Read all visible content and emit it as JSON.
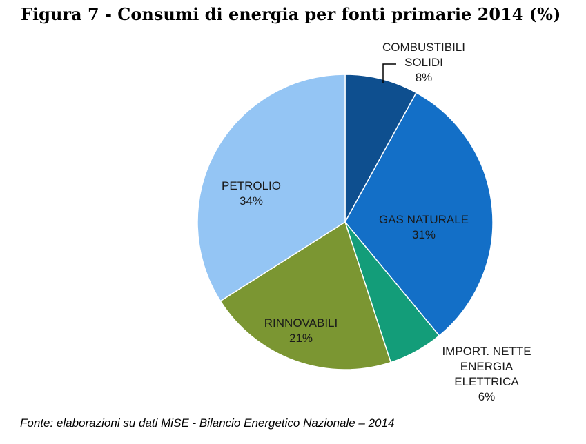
{
  "chart_data": {
    "type": "pie",
    "title": "Figura 7 - Consumi di energia per fonti primarie 2014 (%)",
    "source": "Fonte: elaborazioni su dati MiSE - Bilancio Energetico Nazionale – 2014",
    "slices": [
      {
        "label_lines": [
          "COMBUSTIBILI",
          "SOLIDI"
        ],
        "value": 8,
        "value_label": "8%",
        "color": "#0e4f8f"
      },
      {
        "label_lines": [
          "GAS NATURALE"
        ],
        "value": 31,
        "value_label": "31%",
        "color": "#136fc7"
      },
      {
        "label_lines": [
          "IMPORT. NETTE",
          "ENERGIA",
          "ELETTRICA"
        ],
        "value": 6,
        "value_label": "6%",
        "color": "#139d79"
      },
      {
        "label_lines": [
          "RINNOVABILI"
        ],
        "value": 21,
        "value_label": "21%",
        "color": "#7b9632"
      },
      {
        "label_lines": [
          "PETROLIO"
        ],
        "value": 34,
        "value_label": "34%",
        "color": "#94c5f4"
      }
    ]
  }
}
